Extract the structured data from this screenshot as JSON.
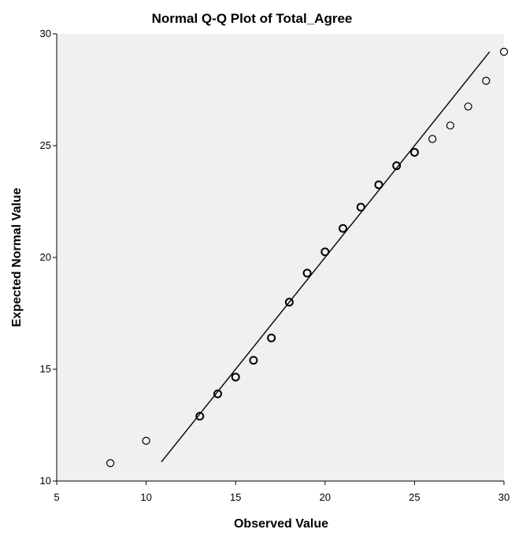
{
  "chart_data": {
    "type": "scatter",
    "title": "Normal Q-Q Plot of Total_Agree",
    "xlabel": "Observed Value",
    "ylabel": "Expected Normal Value",
    "xlim": [
      5,
      30
    ],
    "ylim": [
      10,
      30
    ],
    "x_ticks": [
      5,
      10,
      15,
      20,
      25,
      30
    ],
    "y_ticks": [
      10,
      15,
      20,
      25,
      30
    ],
    "grid": false,
    "plot_background": "#f0f0f0",
    "marker_color": "#000000",
    "line_color": "#000000",
    "points": [
      {
        "x": 8,
        "y": 10.8
      },
      {
        "x": 10,
        "y": 11.8
      },
      {
        "x": 13,
        "y": 12.9
      },
      {
        "x": 14,
        "y": 13.9
      },
      {
        "x": 15,
        "y": 14.65
      },
      {
        "x": 16,
        "y": 15.4
      },
      {
        "x": 17,
        "y": 16.4
      },
      {
        "x": 18,
        "y": 18.0
      },
      {
        "x": 19,
        "y": 19.3
      },
      {
        "x": 20,
        "y": 20.25
      },
      {
        "x": 21,
        "y": 21.3
      },
      {
        "x": 22,
        "y": 22.25
      },
      {
        "x": 23,
        "y": 23.25
      },
      {
        "x": 24,
        "y": 24.1
      },
      {
        "x": 25,
        "y": 24.7
      },
      {
        "x": 26,
        "y": 25.3
      },
      {
        "x": 27,
        "y": 25.9
      },
      {
        "x": 28,
        "y": 26.75
      },
      {
        "x": 29,
        "y": 27.9
      },
      {
        "x": 30,
        "y": 29.2
      }
    ],
    "reference_line": {
      "from": [
        10.85,
        10.85
      ],
      "to": [
        29.2,
        29.2
      ]
    }
  }
}
